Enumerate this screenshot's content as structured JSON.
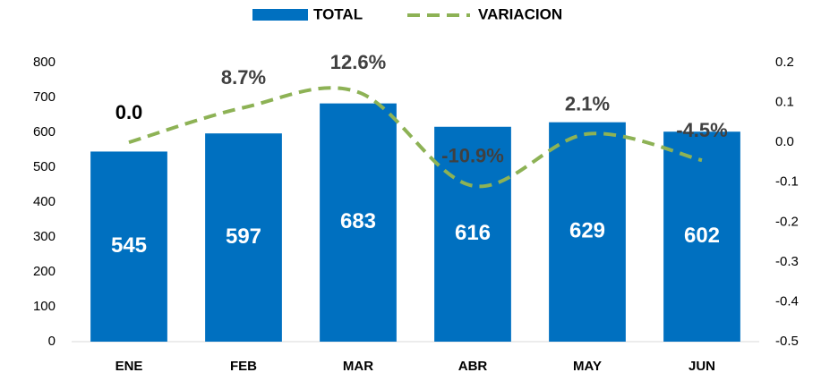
{
  "chart_data": {
    "type": "bar_line",
    "categories": [
      "ENE",
      "FEB",
      "MAR",
      "ABR",
      "MAY",
      "JUN"
    ],
    "series": [
      {
        "name": "TOTAL",
        "type": "bar",
        "color": "#0070c0",
        "values": [
          545,
          597,
          683,
          616,
          629,
          602
        ]
      },
      {
        "name": "VARIACION",
        "type": "line",
        "axis": "y2",
        "color": "#8db255",
        "values": [
          0.0,
          0.087,
          0.126,
          -0.109,
          0.021,
          -0.045
        ],
        "value_labels": [
          "0.0",
          "8.7%",
          "12.6%",
          "-10.9%",
          "2.1%",
          "-4.5%"
        ]
      }
    ],
    "ylim": [
      0,
      800
    ],
    "yticks": [
      0,
      100,
      200,
      300,
      400,
      500,
      600,
      700,
      800
    ],
    "y2lim": [
      -0.5,
      0.2
    ],
    "y2ticks": [
      -0.5,
      -0.4,
      -0.3,
      -0.2,
      -0.1,
      {
        "value": 0,
        "label": "0.0"
      },
      0.1,
      0.2
    ],
    "legend": "top"
  }
}
